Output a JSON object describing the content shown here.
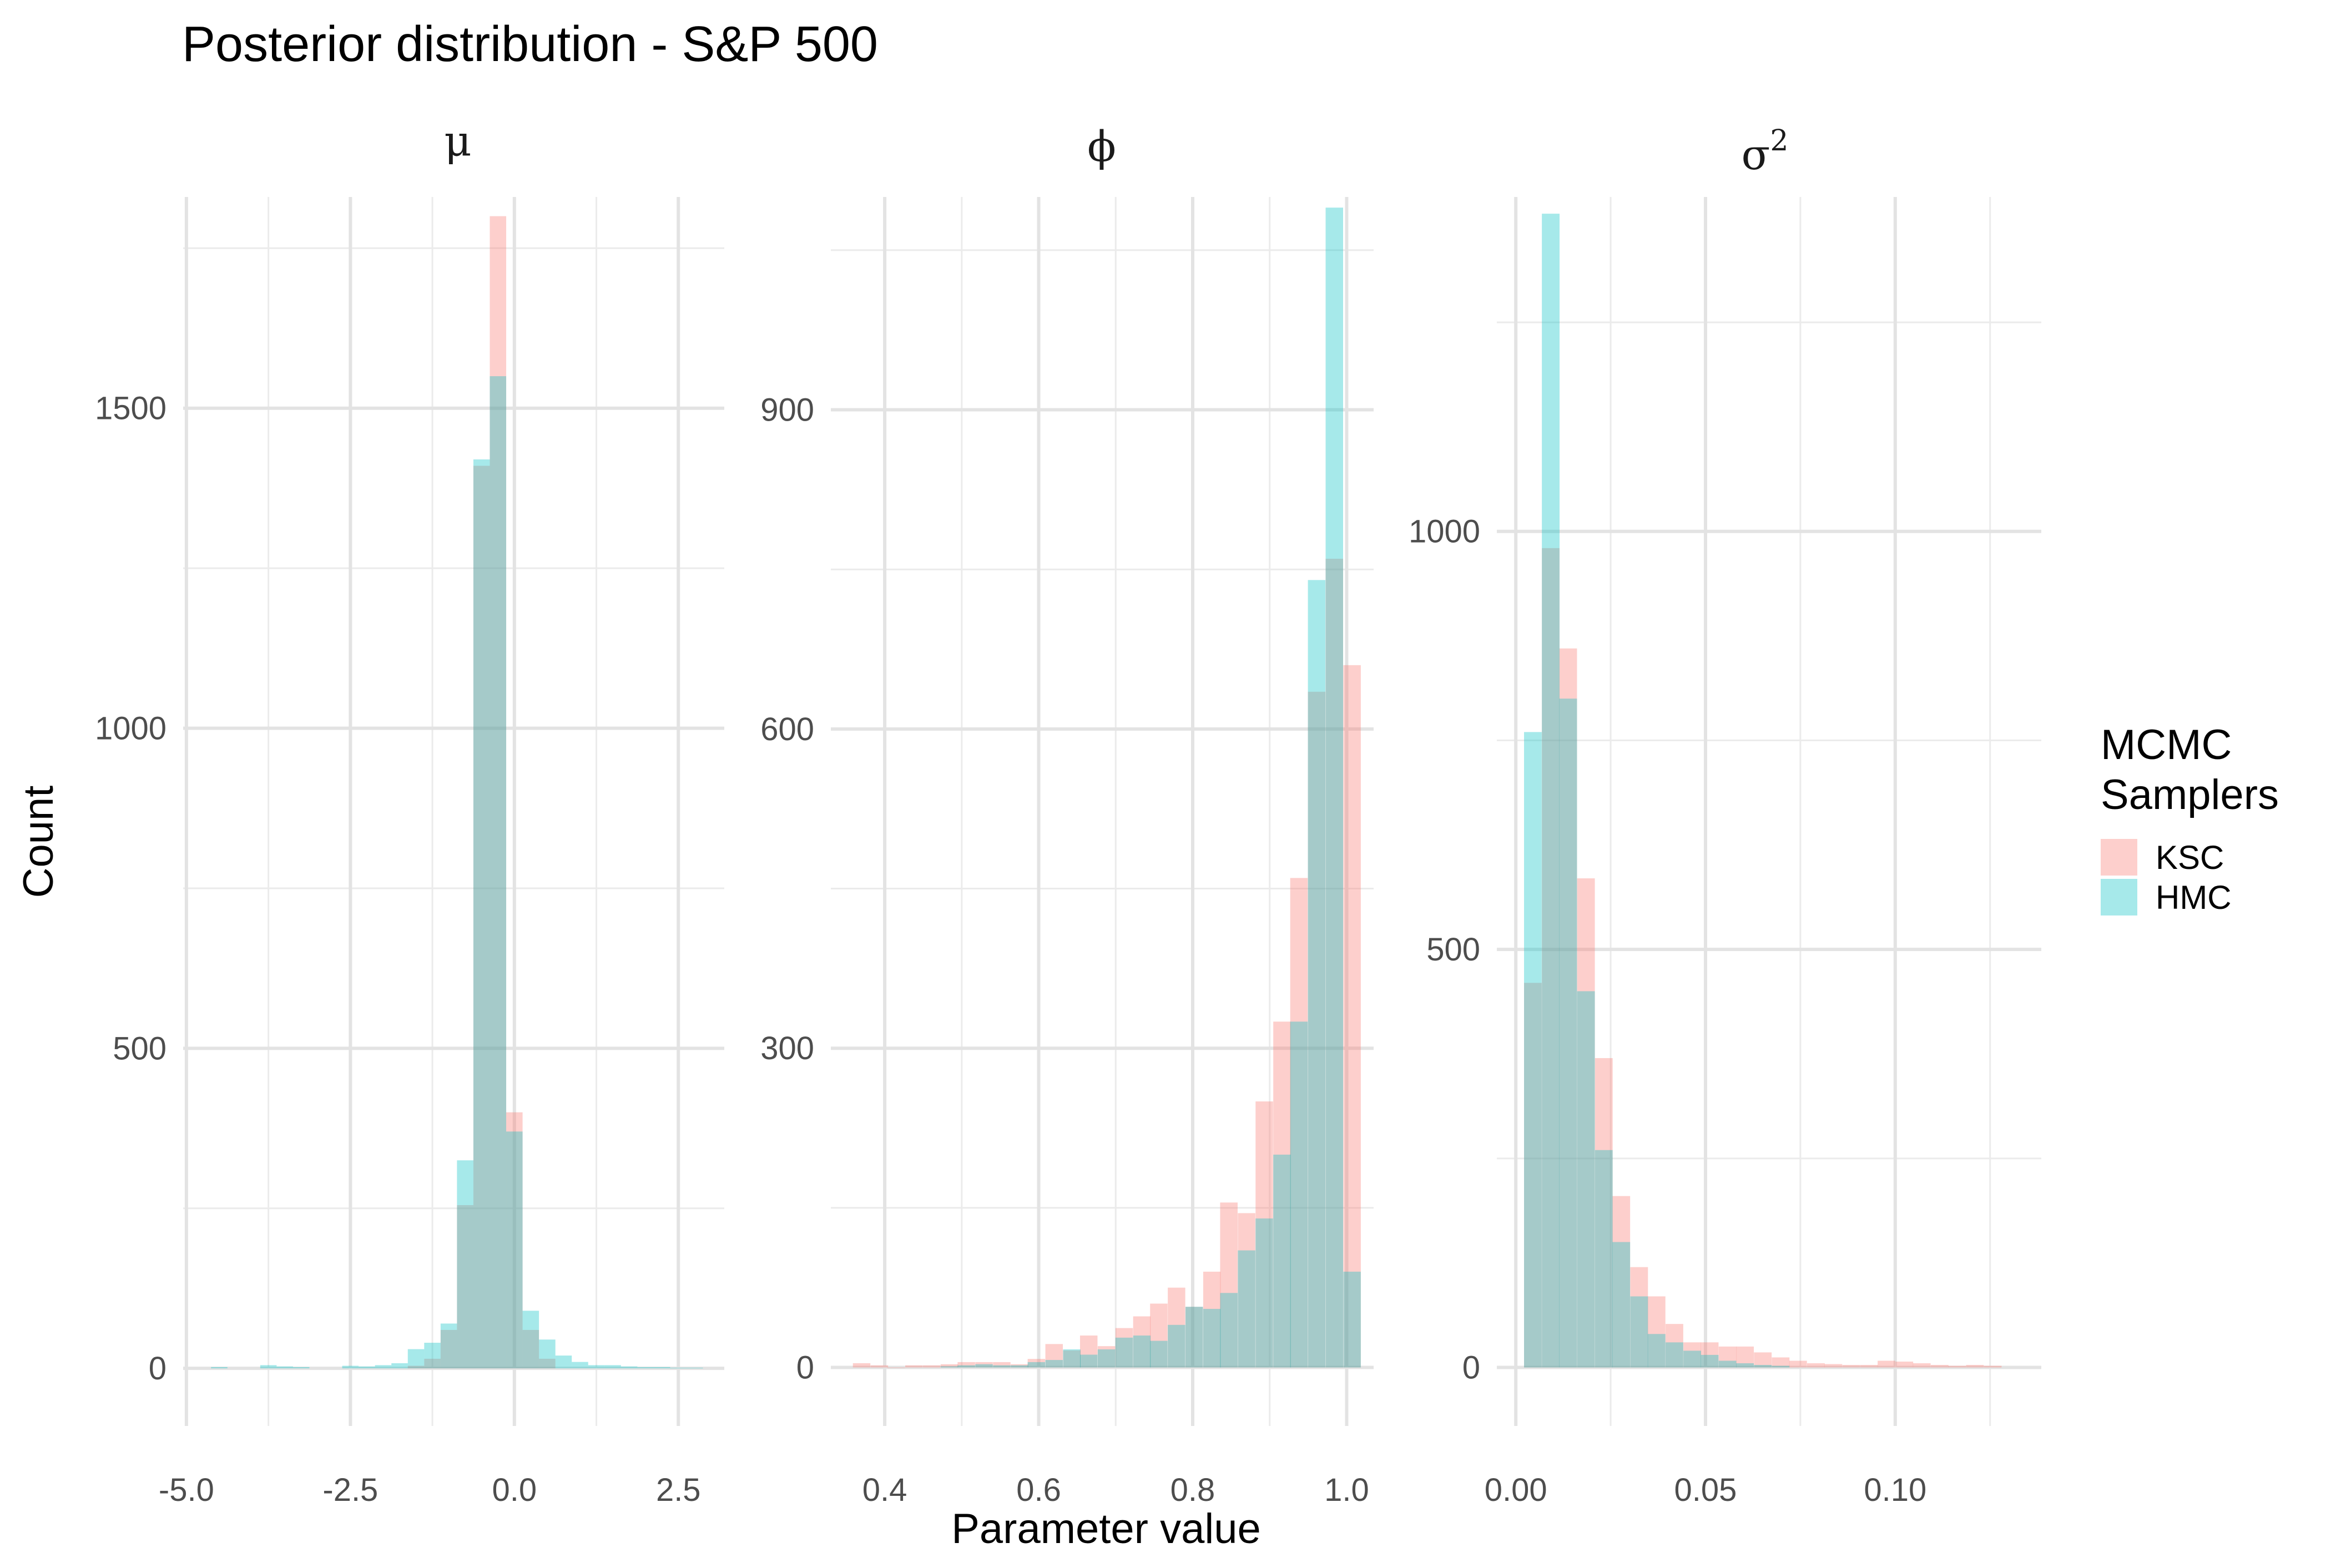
{
  "chart_data": {
    "type": "bar",
    "title": "Posterior distribution - S&P 500",
    "xlabel": "Parameter value",
    "ylabel": "Count",
    "legend": {
      "title_lines": [
        "MCMC",
        "Samplers"
      ],
      "placement": "right",
      "entries": [
        {
          "name": "KSC",
          "color": "#F8766D"
        },
        {
          "name": "HMC",
          "color": "#00BFC4"
        }
      ]
    },
    "grid": true,
    "panels": [
      {
        "id": "mu",
        "strip": "μ",
        "xlim": [
          -5.05,
          3.2
        ],
        "ylim": [
          -90,
          1830
        ],
        "xticks": [
          -5.0,
          -2.5,
          0.0,
          2.5
        ],
        "xtick_labels": [
          "-5.0",
          "-2.5",
          "0.0",
          "2.5"
        ],
        "yticks": [
          0,
          500,
          1000,
          1500
        ],
        "bin_width": 0.25,
        "series": [
          {
            "name": "KSC",
            "bin_centers": [
              -1.5,
              -1.25,
              -1.0,
              -0.75,
              -0.5,
              -0.25,
              0.0,
              0.25,
              0.5
            ],
            "values": [
              4,
              15,
              60,
              255,
              1410,
              1800,
              400,
              60,
              15
            ]
          },
          {
            "name": "HMC",
            "bin_centers": [
              -4.5,
              -3.75,
              -3.5,
              -3.25,
              -2.5,
              -2.25,
              -2.0,
              -1.75,
              -1.5,
              -1.25,
              -1.0,
              -0.75,
              -0.5,
              -0.25,
              0.0,
              0.25,
              0.5,
              0.75,
              1.0,
              1.25,
              1.5,
              1.75,
              2.0,
              2.25,
              2.5,
              2.75
            ],
            "values": [
              2,
              5,
              3,
              2,
              4,
              3,
              5,
              8,
              30,
              40,
              70,
              325,
              1420,
              1550,
              370,
              90,
              45,
              20,
              10,
              5,
              5,
              3,
              2,
              2,
              1,
              1
            ]
          }
        ]
      },
      {
        "id": "phi",
        "strip": "ϕ",
        "xlim": [
          0.33,
          1.035
        ],
        "ylim": [
          -55,
          1100
        ],
        "xticks": [
          0.4,
          0.6,
          0.8,
          1.0
        ],
        "xtick_labels": [
          "0.4",
          "0.6",
          "0.8",
          "1.0"
        ],
        "yticks": [
          0,
          300,
          600,
          900
        ],
        "bin_width": 0.0227,
        "series": [
          {
            "name": "KSC",
            "bin_centers": [
              0.37,
              0.393,
              0.415,
              0.438,
              0.461,
              0.484,
              0.506,
              0.529,
              0.552,
              0.575,
              0.597,
              0.62,
              0.643,
              0.665,
              0.688,
              0.711,
              0.734,
              0.756,
              0.779,
              0.802,
              0.825,
              0.847,
              0.87,
              0.893,
              0.916,
              0.938,
              0.961,
              0.984,
              1.007
            ],
            "values": [
              4,
              2,
              0,
              2,
              2,
              3,
              5,
              5,
              5,
              3,
              8,
              22,
              16,
              30,
              20,
              37,
              48,
              60,
              75,
              57,
              90,
              155,
              145,
              250,
              325,
              460,
              635,
              760,
              660
            ]
          },
          {
            "name": "HMC",
            "bin_centers": [
              0.484,
              0.506,
              0.529,
              0.552,
              0.575,
              0.597,
              0.62,
              0.643,
              0.665,
              0.688,
              0.711,
              0.734,
              0.756,
              0.779,
              0.802,
              0.825,
              0.847,
              0.87,
              0.893,
              0.916,
              0.938,
              0.961,
              0.984,
              1.007
            ],
            "values": [
              1,
              2,
              3,
              2,
              2,
              5,
              7,
              17,
              12,
              17,
              28,
              30,
              25,
              40,
              57,
              55,
              70,
              110,
              140,
              200,
              325,
              740,
              1090,
              90
            ]
          }
        ]
      },
      {
        "id": "sigma2",
        "strip": "σ²",
        "xlim": [
          -0.005,
          0.1385
        ],
        "ylim": [
          -70,
          1400
        ],
        "xticks": [
          0.0,
          0.05,
          0.1
        ],
        "xtick_labels": [
          "0.00",
          "0.05",
          "0.10"
        ],
        "yticks": [
          0,
          500,
          1000
        ],
        "bin_width": 0.00466,
        "series": [
          {
            "name": "KSC",
            "bin_centers": [
              0.0045,
              0.0092,
              0.0138,
              0.0185,
              0.0232,
              0.0278,
              0.0325,
              0.0371,
              0.0418,
              0.0465,
              0.0511,
              0.0558,
              0.0604,
              0.0651,
              0.0698,
              0.0744,
              0.0791,
              0.0837,
              0.0884,
              0.0931,
              0.0977,
              0.1024,
              0.107,
              0.1117,
              0.1163,
              0.121,
              0.1257
            ],
            "values": [
              460,
              980,
              860,
              585,
              370,
              205,
              120,
              85,
              52,
              30,
              30,
              25,
              25,
              18,
              12,
              8,
              5,
              4,
              3,
              3,
              8,
              7,
              5,
              3,
              2,
              3,
              2
            ]
          },
          {
            "name": "HMC",
            "bin_centers": [
              0.0045,
              0.0092,
              0.0138,
              0.0185,
              0.0232,
              0.0278,
              0.0325,
              0.0371,
              0.0418,
              0.0465,
              0.0511,
              0.0558,
              0.0604,
              0.0651,
              0.0698
            ],
            "values": [
              760,
              1380,
              800,
              450,
              260,
              150,
              85,
              40,
              30,
              20,
              15,
              8,
              5,
              3,
              2
            ]
          }
        ]
      }
    ]
  }
}
